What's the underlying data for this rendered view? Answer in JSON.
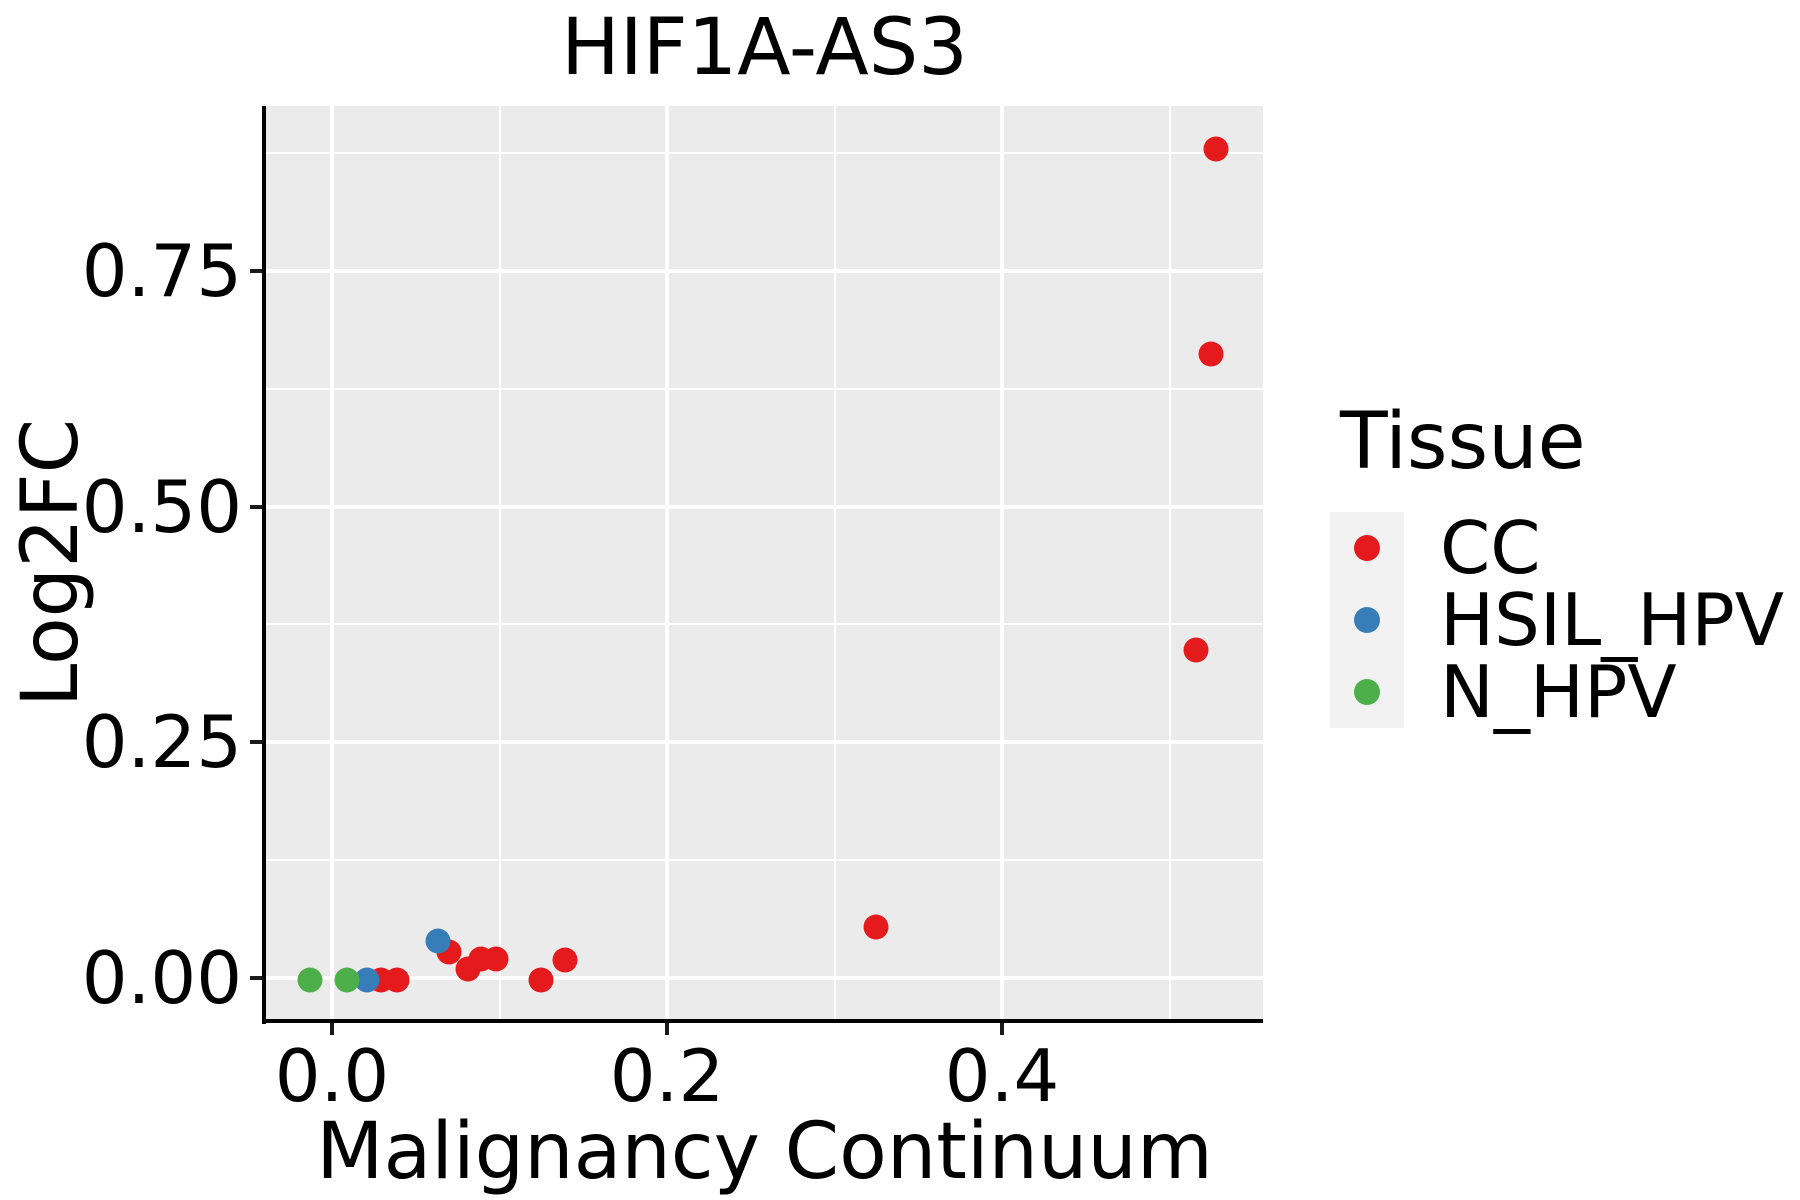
{
  "chart_data": {
    "type": "scatter",
    "title": "HIF1A-AS3",
    "xlabel": "Malignancy Continuum",
    "ylabel": "Log2FC",
    "xlim": [
      -0.0394,
      0.5558
    ],
    "ylim": [
      -0.0446,
      0.9249
    ],
    "x_ticks": {
      "values": [
        0.0,
        0.2,
        0.4
      ],
      "labels": [
        "0.0",
        "0.2",
        "0.4"
      ]
    },
    "x_minor_ticks": [
      0.1,
      0.3,
      0.5
    ],
    "y_ticks": {
      "values": [
        0.0,
        0.25,
        0.5,
        0.75
      ],
      "labels": [
        "0.00",
        "0.25",
        "0.50",
        "0.75"
      ]
    },
    "y_minor_ticks": [
      0.125,
      0.375,
      0.625,
      0.875
    ],
    "grid": {
      "major": true,
      "minor": true,
      "color": "#ffffff",
      "panel_background": "#EBEBEB"
    },
    "legend": {
      "title": "Tissue",
      "position": "right",
      "key_background": "#F2F2F2",
      "entries": [
        {
          "label": "CC",
          "color": "#E41A1C"
        },
        {
          "label": "HSIL_HPV",
          "color": "#377EB8"
        },
        {
          "label": "N_HPV",
          "color": "#4DAF4A"
        }
      ]
    },
    "series": [
      {
        "name": "CC",
        "color": "#E41A1C",
        "points": [
          [
            0.029,
            -0.002
          ],
          [
            0.039,
            -0.002
          ],
          [
            0.07,
            0.027
          ],
          [
            0.081,
            0.009
          ],
          [
            0.089,
            0.02
          ],
          [
            0.098,
            0.02
          ],
          [
            0.125,
            -0.002
          ],
          [
            0.139,
            0.019
          ],
          [
            0.325,
            0.054
          ],
          [
            0.516,
            0.348
          ],
          [
            0.525,
            0.662
          ],
          [
            0.528,
            0.879
          ]
        ]
      },
      {
        "name": "HSIL_HPV",
        "color": "#377EB8",
        "points": [
          [
            0.021,
            -0.002
          ],
          [
            0.063,
            0.039
          ]
        ]
      },
      {
        "name": "N_HPV",
        "color": "#4DAF4A",
        "points": [
          [
            -0.013,
            -0.002
          ],
          [
            0.009,
            -0.002
          ]
        ]
      }
    ]
  }
}
